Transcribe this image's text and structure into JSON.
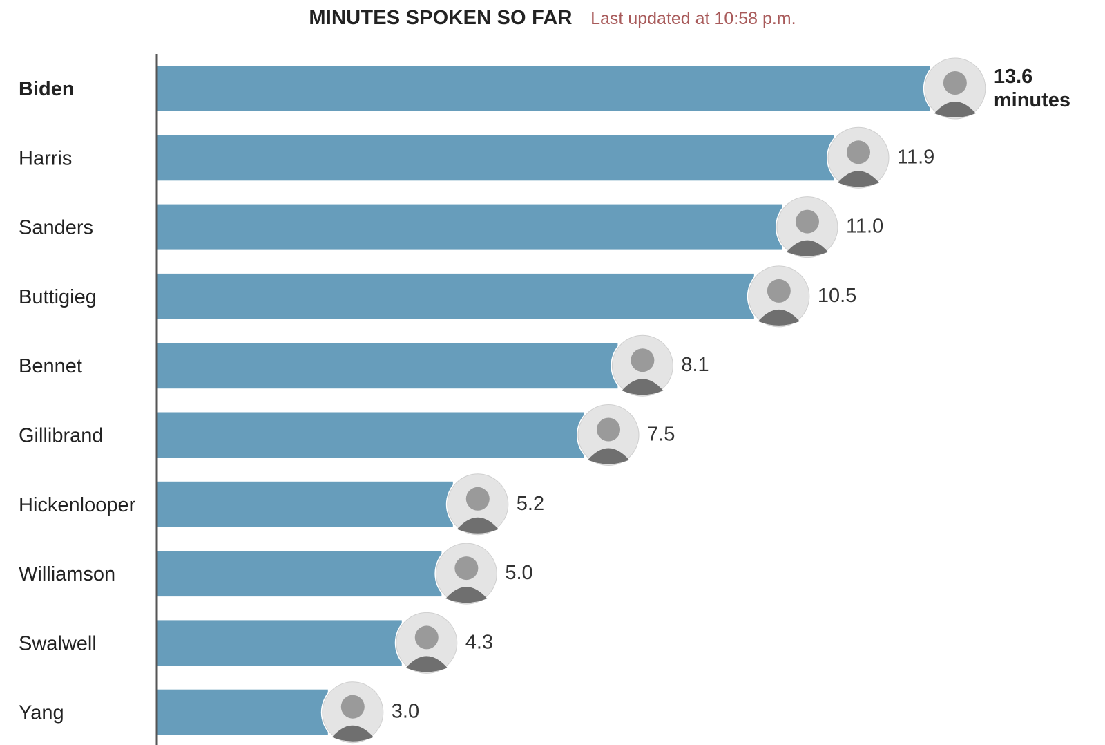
{
  "header": {
    "title": "MINUTES SPOKEN SO FAR",
    "updated": "Last updated at 10:58 p.m."
  },
  "colors": {
    "bar": "#679dbb",
    "axis": "#555555",
    "updated_text": "#a85a5a",
    "avatar_bg": "#e4e4e4",
    "avatar_ring": "#ffffff"
  },
  "chart_data": {
    "type": "bar",
    "orientation": "horizontal",
    "categories": [
      "Biden",
      "Harris",
      "Sanders",
      "Buttigieg",
      "Bennet",
      "Gillibrand",
      "Hickenlooper",
      "Williamson",
      "Swalwell",
      "Yang"
    ],
    "values": [
      13.6,
      11.9,
      11.0,
      10.5,
      8.1,
      7.5,
      5.2,
      5.0,
      4.3,
      3.0
    ],
    "value_labels": [
      "13.6",
      "11.9",
      "11.0",
      "10.5",
      "8.1",
      "7.5",
      "5.2",
      "5.0",
      "4.3",
      "3.0"
    ],
    "first_value_unit": "minutes",
    "xlim": [
      0,
      14.1
    ],
    "grid": false,
    "legend": "none",
    "marker": "candidate-photo-icon"
  }
}
